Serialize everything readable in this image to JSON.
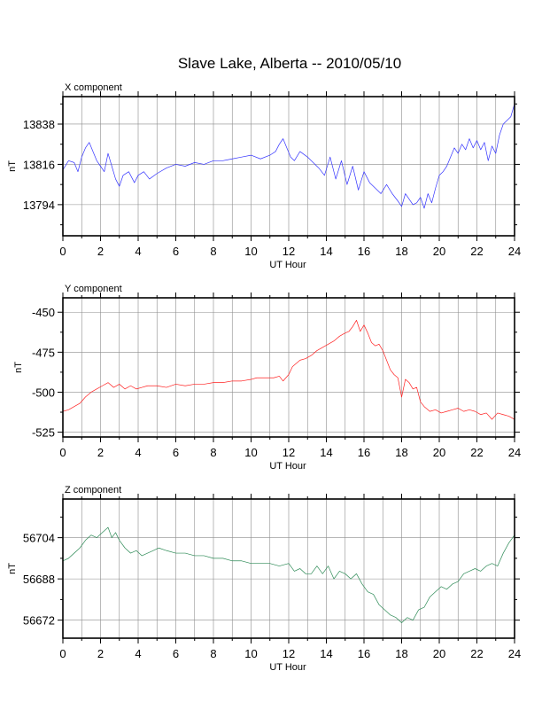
{
  "chart_data": {
    "title": "Slave Lake, Alberta -- 2010/05/10",
    "panels": [
      {
        "type": "line",
        "label": "X component",
        "xlabel": "UT Hour",
        "ylabel": "nT",
        "xlim": [
          0,
          24
        ],
        "xticks": [
          0,
          2,
          4,
          6,
          8,
          10,
          12,
          14,
          16,
          18,
          20,
          22,
          24
        ],
        "ylim": [
          13777,
          13853
        ],
        "yticks": [
          13794,
          13816,
          13838
        ],
        "grid": true,
        "color": "#3333ff",
        "series": [
          {
            "x": [
              0,
              0.3,
              0.6,
              0.8,
              1.0,
              1.2,
              1.4,
              1.6,
              1.8,
              2.0,
              2.2,
              2.4,
              2.6,
              2.8,
              3.0,
              3.2,
              3.5,
              3.8,
              4.0,
              4.3,
              4.6,
              5.0,
              5.5,
              6.0,
              6.5,
              7.0,
              7.5,
              8.0,
              8.5,
              9.0,
              9.5,
              10.0,
              10.5,
              11.0,
              11.3,
              11.5,
              11.7,
              11.9,
              12.1,
              12.3,
              12.6,
              13.0,
              13.3,
              13.6,
              13.9,
              14.2,
              14.5,
              14.8,
              15.1,
              15.4,
              15.7,
              16.0,
              16.3,
              16.6,
              16.9,
              17.2,
              17.5,
              17.8,
              18.0,
              18.2,
              18.4,
              18.6,
              18.8,
              19.0,
              19.2,
              19.4,
              19.6,
              19.8,
              20.0,
              20.2,
              20.4,
              20.6,
              20.8,
              21.0,
              21.2,
              21.4,
              21.6,
              21.8,
              22.0,
              22.2,
              22.4,
              22.6,
              22.8,
              23.0,
              23.2,
              23.4,
              23.6,
              23.8,
              24.0
            ],
            "y": [
              13813,
              13818,
              13817,
              13812,
              13820,
              13825,
              13828,
              13823,
              13818,
              13815,
              13812,
              13822,
              13815,
              13808,
              13804,
              13810,
              13812,
              13806,
              13810,
              13812,
              13808,
              13811,
              13814,
              13816,
              13815,
              13817,
              13816,
              13818,
              13818,
              13819,
              13820,
              13821,
              13819,
              13821,
              13823,
              13827,
              13830,
              13825,
              13820,
              13818,
              13823,
              13820,
              13817,
              13814,
              13810,
              13820,
              13808,
              13818,
              13805,
              13815,
              13802,
              13812,
              13806,
              13803,
              13800,
              13805,
              13800,
              13796,
              13793,
              13800,
              13797,
              13794,
              13795,
              13798,
              13792,
              13800,
              13795,
              13803,
              13810,
              13812,
              13815,
              13820,
              13825,
              13822,
              13827,
              13824,
              13830,
              13825,
              13829,
              13824,
              13828,
              13818,
              13826,
              13822,
              13832,
              13838,
              13840,
              13842,
              13849
            ]
          }
        ]
      },
      {
        "type": "line",
        "label": "Y component",
        "xlabel": "UT Hour",
        "ylabel": "nT",
        "xlim": [
          0,
          24
        ],
        "xticks": [
          0,
          2,
          4,
          6,
          8,
          10,
          12,
          14,
          16,
          18,
          20,
          22,
          24
        ],
        "ylim": [
          -528,
          -441
        ],
        "yticks": [
          -450,
          -475,
          -500,
          -525
        ],
        "grid": true,
        "color": "#ff2020",
        "series": [
          {
            "x": [
              0,
              0.3,
              0.6,
              0.9,
              1.2,
              1.5,
              1.8,
              2.1,
              2.4,
              2.7,
              3.0,
              3.3,
              3.6,
              3.9,
              4.2,
              4.5,
              5.0,
              5.5,
              6.0,
              6.5,
              7.0,
              7.5,
              8.0,
              8.5,
              9.0,
              9.5,
              10.0,
              10.3,
              10.6,
              10.9,
              11.2,
              11.5,
              11.7,
              12.0,
              12.2,
              12.4,
              12.6,
              12.9,
              13.2,
              13.5,
              13.8,
              14.1,
              14.4,
              14.7,
              15.0,
              15.2,
              15.4,
              15.6,
              15.8,
              16.0,
              16.2,
              16.4,
              16.6,
              16.8,
              17.0,
              17.2,
              17.4,
              17.6,
              17.8,
              18.0,
              18.2,
              18.4,
              18.6,
              18.8,
              19.0,
              19.2,
              19.5,
              19.8,
              20.1,
              20.4,
              20.7,
              21.0,
              21.3,
              21.6,
              21.9,
              22.2,
              22.5,
              22.8,
              23.1,
              23.4,
              23.7,
              24.0
            ],
            "y": [
              -512,
              -511,
              -509,
              -507,
              -503,
              -500,
              -498,
              -496,
              -494,
              -497,
              -495,
              -498,
              -496,
              -498,
              -497,
              -496,
              -496,
              -497,
              -495,
              -496,
              -495,
              -495,
              -494,
              -494,
              -493,
              -493,
              -492,
              -491,
              -491,
              -491,
              -491,
              -490,
              -493,
              -489,
              -484,
              -482,
              -480,
              -479,
              -477,
              -474,
              -472,
              -470,
              -468,
              -465,
              -463,
              -462,
              -459,
              -455,
              -462,
              -458,
              -463,
              -469,
              -471,
              -470,
              -474,
              -480,
              -486,
              -489,
              -491,
              -503,
              -492,
              -494,
              -498,
              -497,
              -506,
              -509,
              -512,
              -511,
              -513,
              -512,
              -511,
              -510,
              -512,
              -511,
              -512,
              -514,
              -513,
              -517,
              -513,
              -514,
              -515,
              -517
            ]
          }
        ]
      },
      {
        "type": "line",
        "label": "Z component",
        "xlabel": "UT Hour",
        "ylabel": "nT",
        "xlim": [
          0,
          24
        ],
        "xticks": [
          0,
          2,
          4,
          6,
          8,
          10,
          12,
          14,
          16,
          18,
          20,
          22,
          24
        ],
        "ylim": [
          56665,
          56719
        ],
        "yticks": [
          56672,
          56688,
          56704
        ],
        "grid": true,
        "color": "#2e8b57",
        "series": [
          {
            "x": [
              0,
              0.3,
              0.6,
              0.9,
              1.2,
              1.5,
              1.8,
              2.1,
              2.4,
              2.6,
              2.8,
              3.0,
              3.3,
              3.6,
              3.9,
              4.2,
              4.5,
              4.8,
              5.1,
              5.5,
              6.0,
              6.5,
              7.0,
              7.5,
              8.0,
              8.5,
              9.0,
              9.5,
              10.0,
              10.5,
              11.0,
              11.5,
              12.0,
              12.3,
              12.6,
              12.9,
              13.2,
              13.5,
              13.8,
              14.1,
              14.4,
              14.7,
              15.0,
              15.3,
              15.6,
              15.9,
              16.2,
              16.5,
              16.8,
              17.1,
              17.4,
              17.7,
              18.0,
              18.3,
              18.6,
              18.9,
              19.2,
              19.5,
              19.8,
              20.1,
              20.4,
              20.7,
              21.0,
              21.3,
              21.6,
              21.9,
              22.2,
              22.5,
              22.8,
              23.1,
              23.4,
              23.7,
              24.0
            ],
            "y": [
              56695,
              56696,
              56698,
              56700,
              56703,
              56705,
              56704,
              56706,
              56708,
              56704,
              56706,
              56703,
              56700,
              56698,
              56699,
              56697,
              56698,
              56699,
              56700,
              56699,
              56698,
              56698,
              56697,
              56697,
              56696,
              56696,
              56695,
              56695,
              56694,
              56694,
              56694,
              56693,
              56694,
              56691,
              56692,
              56690,
              56690,
              56693,
              56690,
              56693,
              56688,
              56691,
              56690,
              56688,
              56690,
              56686,
              56683,
              56682,
              56678,
              56676,
              56674,
              56673,
              56671,
              56673,
              56672,
              56676,
              56677,
              56681,
              56683,
              56685,
              56684,
              56686,
              56687,
              56690,
              56691,
              56692,
              56691,
              56693,
              56694,
              56693,
              56698,
              56702,
              56705
            ]
          }
        ]
      }
    ]
  }
}
